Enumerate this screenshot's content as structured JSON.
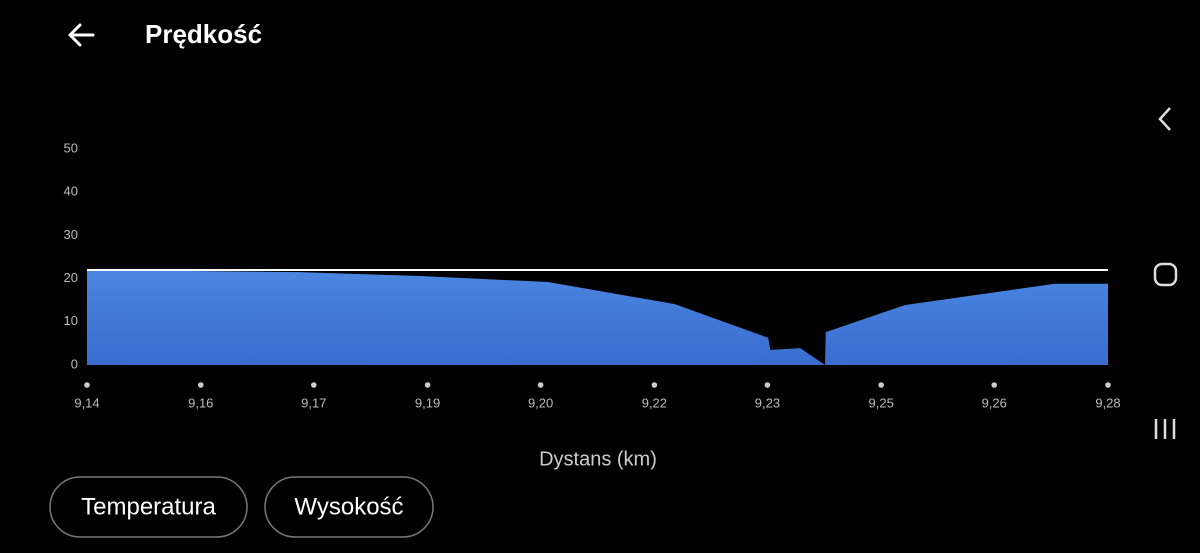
{
  "header": {
    "title": "Prędkość"
  },
  "chart_data": {
    "type": "area",
    "x_label": "Dystans (km)",
    "x": [
      9.14,
      9.1692,
      9.1857,
      9.2032,
      9.2206,
      9.2334,
      9.2337,
      9.2378,
      9.2412,
      9.2413,
      9.2522,
      9.2727,
      9.28
    ],
    "series": [
      {
        "color": "#4a84df",
        "values": [
          22.0,
          21.5,
          20.6,
          19.2,
          14.1,
          6.3,
          3.5,
          3.9,
          0,
          7.6,
          13.9,
          18.8,
          18.8
        ]
      }
    ],
    "reference_line": 22,
    "xlim": [
      9.14,
      9.28
    ],
    "xticks": [
      {
        "value": 9.14,
        "label": "9,14"
      },
      {
        "value": 9.1556,
        "label": "9,16"
      },
      {
        "value": 9.1711,
        "label": "9,17"
      },
      {
        "value": 9.1867,
        "label": "9,19"
      },
      {
        "value": 9.2022,
        "label": "9,20"
      },
      {
        "value": 9.2178,
        "label": "9,22"
      },
      {
        "value": 9.2333,
        "label": "9,23"
      },
      {
        "value": 9.2489,
        "label": "9,25"
      },
      {
        "value": 9.2644,
        "label": "9,26"
      },
      {
        "value": 9.28,
        "label": "9,28"
      }
    ],
    "ylim": [
      0,
      50
    ],
    "yticks": [
      0,
      10,
      20,
      30,
      40,
      50
    ]
  },
  "buttons": [
    "Temperatura",
    "Wysokość"
  ]
}
